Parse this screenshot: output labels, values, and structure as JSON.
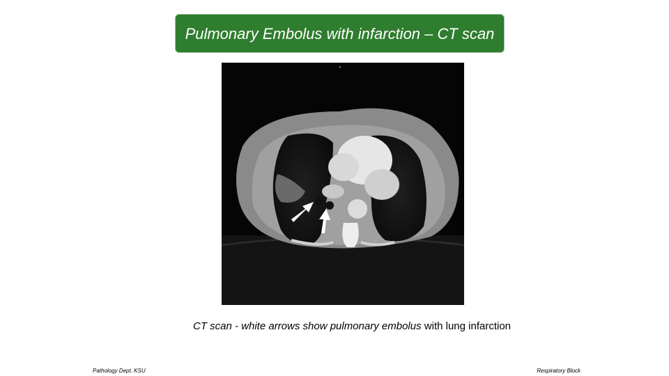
{
  "header": {
    "title": "Pulmonary Embolus with infarction – CT scan"
  },
  "caption": {
    "emphasis": "CT scan - white arrows show pulmonary embolus",
    "rest": "with lung infarction"
  },
  "footer": {
    "left": "Pathology Dept. KSU",
    "right": "Respiratory Block"
  }
}
